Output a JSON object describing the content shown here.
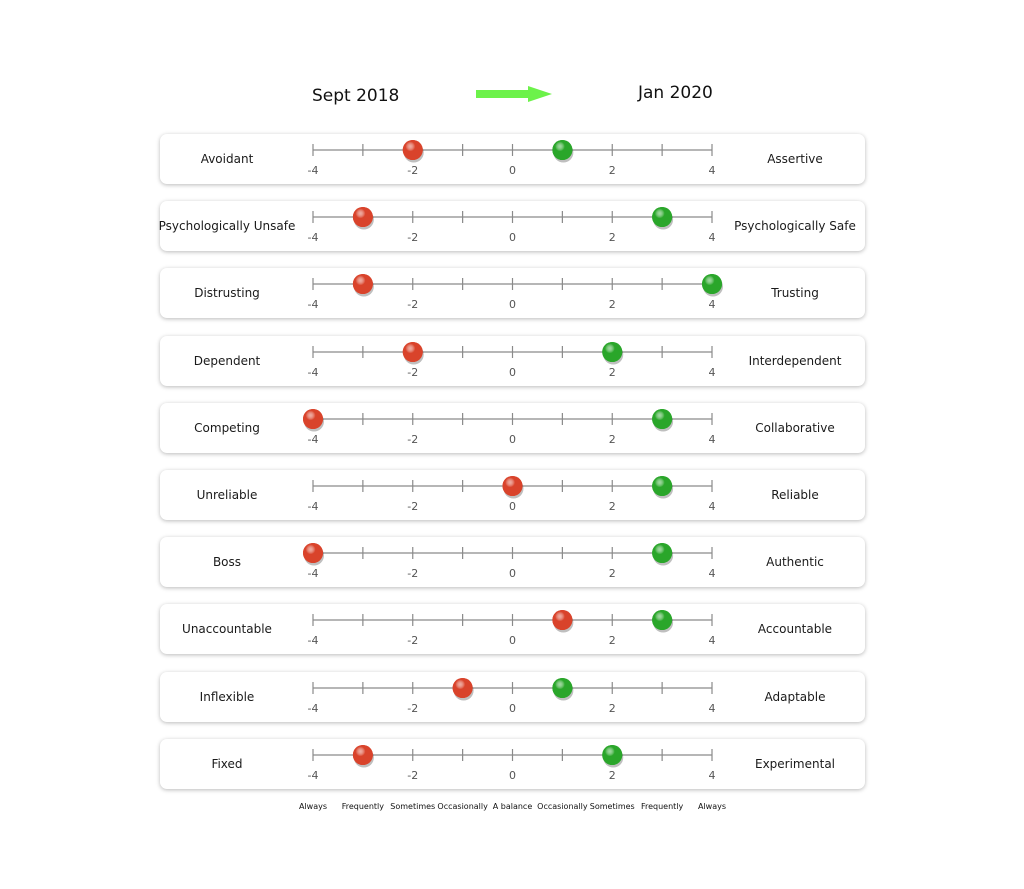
{
  "header": {
    "from_label": "Sept 2018",
    "to_label": "Jan 2020",
    "arrow_color": "#6cf24a"
  },
  "colors": {
    "before": "#d9432b",
    "after": "#2aa62a",
    "axis": "#8a8a8a",
    "tick_text": "#555555"
  },
  "chart_data": {
    "type": "scatter",
    "xlim": [
      -4,
      4
    ],
    "tick_labels": [
      "-4",
      "-2",
      "0",
      "2",
      "4"
    ],
    "tick_values": [
      -4,
      -3,
      -2,
      -1,
      0,
      1,
      2,
      3,
      4
    ],
    "scale_words": [
      "Always",
      "Frequently",
      "Sometimes",
      "Occasionally",
      "A balance",
      "Occasionally",
      "Sometimes",
      "Frequently",
      "Always"
    ],
    "rows": [
      {
        "left": "Avoidant",
        "right": "Assertive",
        "before": -2,
        "after": 1
      },
      {
        "left": "Psychologically Unsafe",
        "right": "Psychologically Safe",
        "before": -3,
        "after": 3
      },
      {
        "left": "Distrusting",
        "right": "Trusting",
        "before": -3,
        "after": 4
      },
      {
        "left": "Dependent",
        "right": "Interdependent",
        "before": -2,
        "after": 2
      },
      {
        "left": "Competing",
        "right": "Collaborative",
        "before": -4,
        "after": 3
      },
      {
        "left": "Unreliable",
        "right": "Reliable",
        "before": 0,
        "after": 3
      },
      {
        "left": "Boss",
        "right": "Authentic",
        "before": -4,
        "after": 3
      },
      {
        "left": "Unaccountable",
        "right": "Accountable",
        "before": 1,
        "after": 3
      },
      {
        "left": "Inflexible",
        "right": "Adaptable",
        "before": -1,
        "after": 1
      },
      {
        "left": "Fixed",
        "right": "Experimental",
        "before": -3,
        "after": 2
      }
    ]
  }
}
